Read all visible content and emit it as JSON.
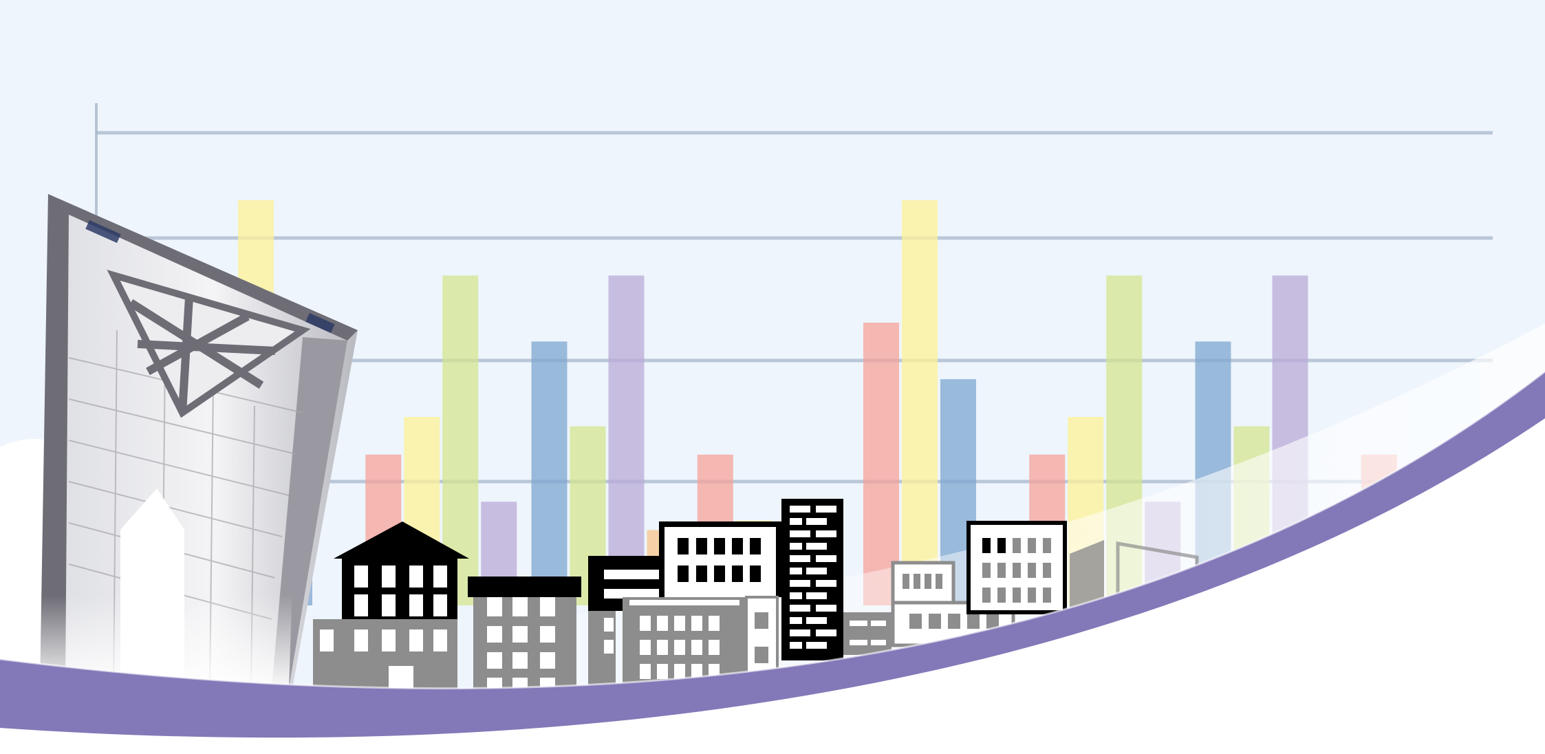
{
  "chart_data": {
    "type": "bar",
    "categories": [
      "",
      "",
      "",
      "",
      "",
      "",
      "",
      ""
    ],
    "series": [
      {
        "color": "#f6a19a",
        "values": [
          3.0,
          1.6,
          0,
          1.6,
          3.0,
          1.6,
          0,
          1.6
        ]
      },
      {
        "color": "#fdf196",
        "values": [
          4.3,
          2.0,
          0,
          0.9,
          4.3,
          2.0,
          0,
          0.9
        ]
      },
      {
        "color": "#7ea6d0",
        "values": [
          2.4,
          0,
          2.8,
          0,
          2.4,
          0,
          2.8,
          0
        ]
      },
      {
        "color": "#d4e48f",
        "values": [
          0,
          3.5,
          1.9,
          0,
          0,
          3.5,
          1.9,
          0
        ]
      },
      {
        "color": "#b9a9d8",
        "values": [
          0,
          1.1,
          3.5,
          0,
          0,
          1.1,
          3.5,
          0
        ]
      },
      {
        "color": "#f8c48b",
        "values": [
          0,
          0,
          0.8,
          0,
          0,
          0,
          0.8,
          0
        ]
      }
    ],
    "title": "",
    "xlabel": "",
    "ylabel": "",
    "ylim": [
      0,
      5
    ],
    "grid": true,
    "legend": "none"
  },
  "colors": {
    "background": "#eef5fc",
    "gridline": "#9db0c6",
    "swoosh": "#8378b8",
    "tower": "#8c8b93",
    "building_dark": "#000000",
    "building_gray": "#8d8d8d"
  },
  "decorations": {
    "tower_icon": "tower-illustration",
    "skyline_icon": "city-skyline-silhouette",
    "swoosh_icon": "purple-wave-swoosh"
  }
}
